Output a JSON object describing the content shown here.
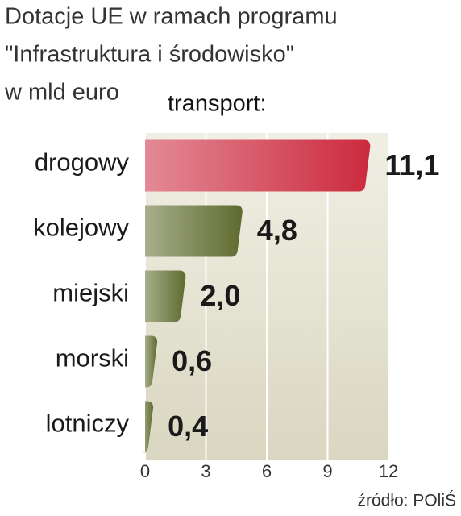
{
  "chart_data": {
    "type": "barh",
    "title": [
      "Dotacje UE w ramach programu",
      "\"Infrastruktura i środowisko\"",
      "w mld euro"
    ],
    "subtitle": "transport:",
    "source": "źródło: POliŚ",
    "categories": [
      "drogowy",
      "kolejowy",
      "miejski",
      "morski",
      "lotniczy"
    ],
    "values": [
      11.1,
      4.8,
      2.0,
      0.6,
      0.4
    ],
    "value_labels": [
      "11,1",
      "4,8",
      "2,0",
      "0,6",
      "0,4"
    ],
    "colors": [
      "#cc2a3e",
      "#5f6b2e",
      "#5f6b2e",
      "#5f6b2e",
      "#5f6b2e"
    ],
    "xlim": [
      0,
      12
    ],
    "xticks": [
      0,
      3,
      6,
      9,
      12
    ],
    "grid": true
  }
}
